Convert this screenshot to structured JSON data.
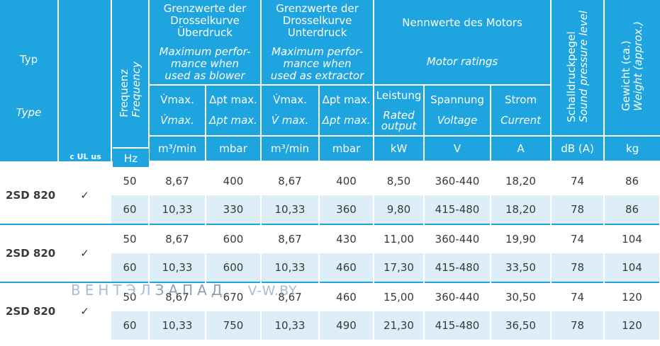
{
  "header": {
    "type_de": "Typ",
    "type_en": "Type",
    "freq_de": "Frequenz",
    "freq_en": "Frequency",
    "over_de": "Grenzwerte der Drosselkurve Überdruck",
    "over_en": "Maximum perfor-mance when used as blower",
    "under_de": "Grenzwerte der Drosselkurve Unterdruck",
    "under_en": "Maximum perfor-mance when used as extractor",
    "motor_de": "Nennwerte des Motors",
    "motor_en": "Motor ratings",
    "sound_de": "Schalldruckpegel",
    "sound_en": "Sound pressure level",
    "weight_de": "Gewicht (ca.)",
    "weight_en": "Weight (approx.)",
    "vmax_de": "V̇max.",
    "vmax_en": "V̇max.",
    "dp_de": "Δpt max.",
    "dp_en": "Δpt max.",
    "vmax2_de": "V̇max.",
    "vmax2_en": "V̇ max.",
    "dp2_de": "Δpt max.",
    "dp2_en": "Δpt max.",
    "power_de": "Leistung",
    "power_en": "Rated output",
    "voltage_de": "Spannung",
    "voltage_en": "Voltage",
    "current_de": "Strom",
    "current_en": "Current",
    "cert_logo": "c UL us"
  },
  "units": {
    "freq": "Hz",
    "vmax": "m³/min",
    "dp": "mbar",
    "vmax2": "m³/min",
    "dp2": "mbar",
    "power": "kW",
    "voltage": "V",
    "current": "A",
    "sound": "dB (A)",
    "weight": "kg"
  },
  "groups": [
    {
      "model": "2SD 820",
      "check": "✓",
      "rows": [
        {
          "freq": "50",
          "vmax": "8,67",
          "dp": "400",
          "vmax2": "8,67",
          "dp2": "400",
          "power": "8,50",
          "voltage": "360-440",
          "current": "18,20",
          "sound": "74",
          "weight": "86"
        },
        {
          "freq": "60",
          "vmax": "10,33",
          "dp": "330",
          "vmax2": "10,33",
          "dp2": "360",
          "power": "9,80",
          "voltage": "415-480",
          "current": "18,20",
          "sound": "78",
          "weight": "86"
        }
      ]
    },
    {
      "model": "2SD 820",
      "check": "✓",
      "rows": [
        {
          "freq": "50",
          "vmax": "8,67",
          "dp": "600",
          "vmax2": "8,67",
          "dp2": "430",
          "power": "11,00",
          "voltage": "360-440",
          "current": "19,90",
          "sound": "74",
          "weight": "104"
        },
        {
          "freq": "60",
          "vmax": "10,33",
          "dp": "600",
          "vmax2": "10,33",
          "dp2": "460",
          "power": "17,30",
          "voltage": "415-480",
          "current": "33,50",
          "sound": "78",
          "weight": "104"
        }
      ]
    },
    {
      "model": "2SD 820",
      "check": "✓",
      "rows": [
        {
          "freq": "50",
          "vmax": "8,67",
          "dp": "670",
          "vmax2": "8,67",
          "dp2": "460",
          "power": "15,00",
          "voltage": "360-440",
          "current": "30,50",
          "sound": "74",
          "weight": "120"
        },
        {
          "freq": "60",
          "vmax": "10,33",
          "dp": "750",
          "vmax2": "10,33",
          "dp2": "490",
          "power": "21,30",
          "voltage": "415-480",
          "current": "36,50",
          "sound": "78",
          "weight": "120"
        }
      ]
    }
  ],
  "watermark": {
    "brand_light": "ВЕНТЭЛ",
    "brand_dark": "ЗАПАД",
    "url": "V-W.BY"
  },
  "colors": {
    "header_bg": "#1ea4de",
    "row_alt_bg": "#ddeef9",
    "text": "#3a3a3a"
  }
}
